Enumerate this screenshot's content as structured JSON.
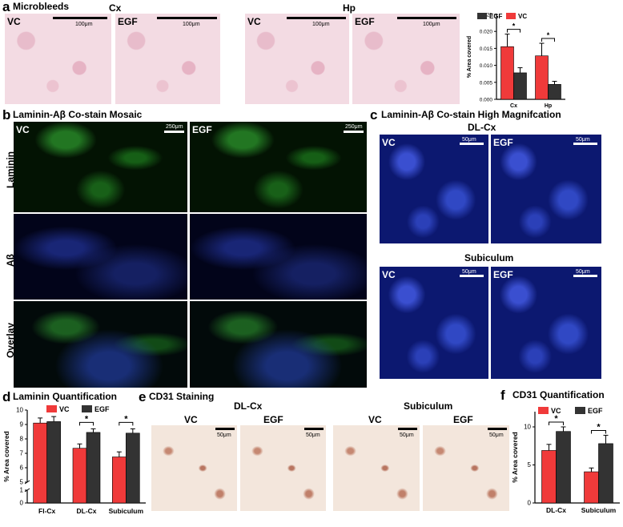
{
  "panel_a": {
    "label": "a",
    "title": "Microbleeds",
    "region_cx": "Cx",
    "region_hp": "Hp",
    "vc": "VC",
    "egf": "EGF",
    "scale": "100μm"
  },
  "panel_b": {
    "label": "b",
    "title": "Laminin-Aβ Co-stain Mosaic",
    "vc": "VC",
    "egf": "EGF",
    "scale": "250μm",
    "rows": [
      "Laminin",
      "Aβ",
      "Overlay"
    ]
  },
  "panel_c": {
    "label": "c",
    "title": "Laminin-Aβ Co-stain High Magnifcation",
    "region_top": "DL-Cx",
    "region_bottom": "Subiculum",
    "vc": "VC",
    "egf": "EGF",
    "scale": "50μm"
  },
  "panel_d": {
    "label": "d",
    "title": "Laminin Quantification"
  },
  "panel_e": {
    "label": "e",
    "title": "CD31 Staining",
    "region_left": "DL-Cx",
    "region_right": "Subiculum",
    "vc": "VC",
    "egf": "EGF",
    "scale": "50μm"
  },
  "panel_f": {
    "label": "f",
    "title": "CD31 Quantification"
  },
  "colors": {
    "vc": "#f03a3a",
    "egf": "#333333"
  },
  "chart_data": [
    {
      "id": "a",
      "type": "bar",
      "categories": [
        "Cx",
        "Hp"
      ],
      "series": [
        {
          "name": "VC",
          "values": [
            0.0155,
            0.0128
          ],
          "errors": [
            0.0037,
            0.0037
          ]
        },
        {
          "name": "EGF",
          "values": [
            0.0078,
            0.0044
          ],
          "errors": [
            0.0015,
            0.0009
          ]
        }
      ],
      "legend_order": [
        "EGF",
        "VC"
      ],
      "ylabel": "% Area covered",
      "ylim": [
        0,
        0.025
      ],
      "yticks": [
        "0.000",
        "0.005",
        "0.010",
        "0.015",
        "0.020",
        "0.025"
      ],
      "significance": [
        "*",
        "*"
      ],
      "legend": "top"
    },
    {
      "id": "d",
      "type": "bar",
      "categories": [
        "Fl-Cx",
        "DL-Cx",
        "Subiculum"
      ],
      "series": [
        {
          "name": "VC",
          "values": [
            9.1,
            7.35,
            6.75
          ],
          "errors": [
            0.35,
            0.3,
            0.35
          ]
        },
        {
          "name": "EGF",
          "values": [
            9.2,
            8.45,
            8.4
          ],
          "errors": [
            0.35,
            0.25,
            0.3
          ]
        }
      ],
      "ylabel": "% Area covered",
      "ylim": [
        0,
        10
      ],
      "yticks": [
        "0",
        "1",
        "5",
        "6",
        "7",
        "8",
        "9",
        "10"
      ],
      "axis_break": [
        1,
        5
      ],
      "significance": [
        "",
        "*",
        "*"
      ],
      "legend": "top"
    },
    {
      "id": "f",
      "type": "bar",
      "categories": [
        "DL-Cx",
        "Subiculum"
      ],
      "series": [
        {
          "name": "VC",
          "values": [
            6.9,
            4.1
          ],
          "errors": [
            0.8,
            0.5
          ]
        },
        {
          "name": "EGF",
          "values": [
            9.4,
            7.8
          ],
          "errors": [
            0.6,
            1.1
          ]
        }
      ],
      "ylabel": "% Area covered",
      "ylim": [
        0,
        12
      ],
      "yticks": [
        "0",
        "5",
        "10"
      ],
      "significance": [
        "*",
        "*"
      ],
      "legend": "top"
    }
  ]
}
